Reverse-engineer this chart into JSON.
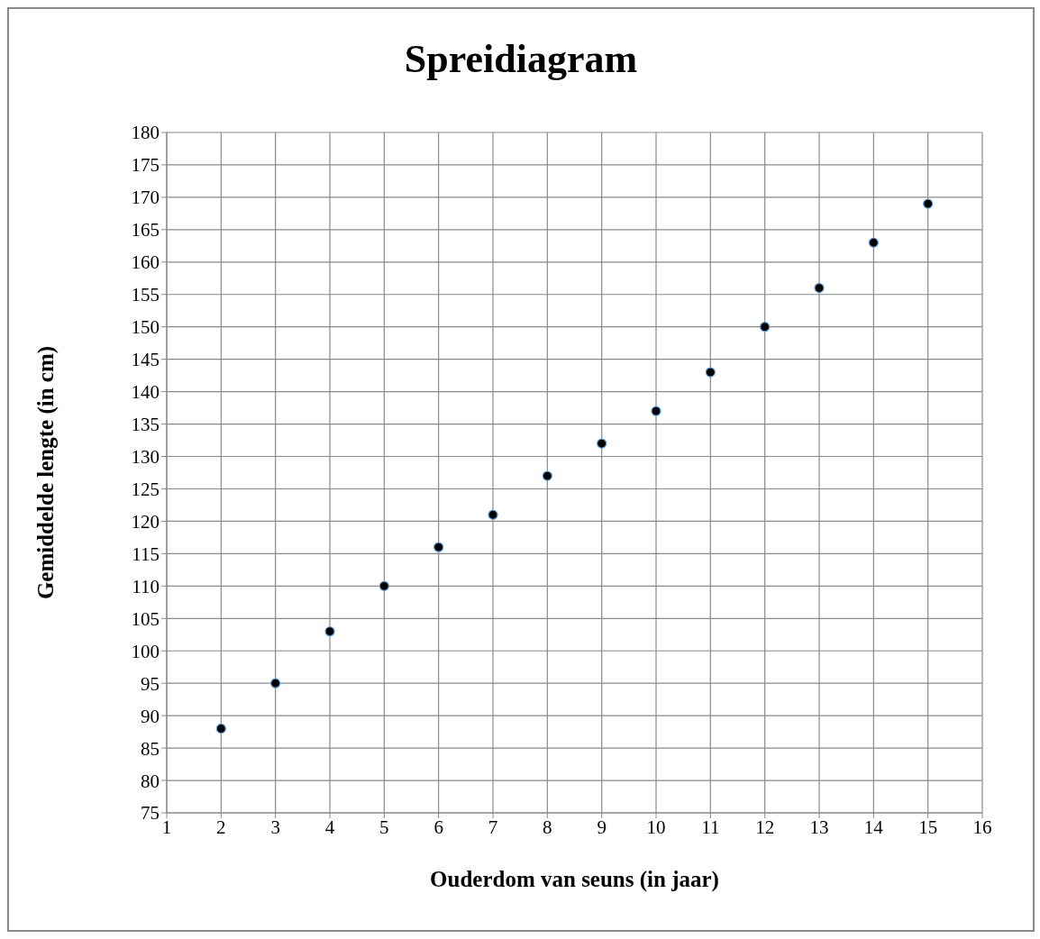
{
  "chart_data": {
    "type": "scatter",
    "title": "Spreidiagram",
    "xlabel": "Ouderdom van seuns (in jaar)",
    "ylabel": "Gemiddelde lengte  (in cm)",
    "x": [
      2,
      3,
      4,
      5,
      6,
      7,
      8,
      9,
      10,
      11,
      12,
      13,
      14,
      15
    ],
    "values": [
      88,
      95,
      103,
      110,
      116,
      121,
      127,
      132,
      137,
      143,
      150,
      156,
      163,
      169
    ],
    "color": "#000000",
    "marker": "circle",
    "grid": true,
    "xlim": [
      1,
      16
    ],
    "xticks": [
      1,
      2,
      3,
      4,
      5,
      6,
      7,
      8,
      9,
      10,
      11,
      12,
      13,
      14,
      15,
      16
    ],
    "ylim": [
      75,
      180
    ],
    "yticks": [
      75,
      80,
      85,
      90,
      95,
      100,
      105,
      110,
      115,
      120,
      125,
      130,
      135,
      140,
      145,
      150,
      155,
      160,
      165,
      170,
      175,
      180
    ]
  }
}
